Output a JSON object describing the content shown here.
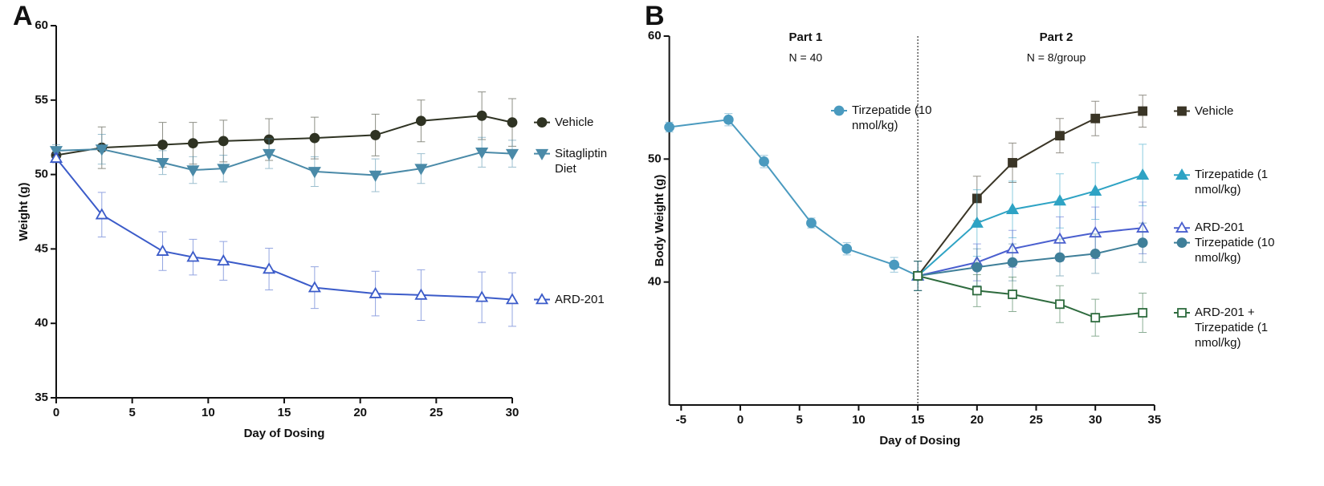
{
  "chart_data": [
    {
      "type": "line",
      "panel": "A",
      "x_label": "Day of Dosing",
      "y_label": "Weight (g)",
      "x": [
        0,
        3,
        7,
        9,
        11,
        14,
        17,
        21,
        24,
        28,
        30
      ],
      "xlim": [
        0,
        30
      ],
      "xticks": [
        0,
        5,
        10,
        15,
        20,
        25,
        30
      ],
      "ylim": [
        35,
        60
      ],
      "yticks": [
        35,
        40,
        45,
        50,
        55,
        60
      ],
      "legend": "right",
      "series": [
        {
          "name": "Vehicle",
          "color": "#2f3323",
          "marker": "circle",
          "filled": true,
          "values": [
            51.3,
            51.8,
            52.0,
            52.1,
            52.25,
            52.35,
            52.45,
            52.65,
            53.6,
            53.95,
            53.5
          ],
          "errors": [
            0.5,
            1.4,
            1.5,
            1.4,
            1.4,
            1.4,
            1.4,
            1.4,
            1.4,
            1.6,
            1.6
          ]
        },
        {
          "name": "Sitagliptin Diet",
          "color": "#4a8aa8",
          "marker": "triangle-down",
          "filled": true,
          "values": [
            51.6,
            51.7,
            50.8,
            50.3,
            50.4,
            51.4,
            50.2,
            49.95,
            50.4,
            51.5,
            51.4
          ],
          "errors": [
            0.4,
            1.0,
            0.8,
            0.9,
            0.9,
            1.0,
            1.0,
            1.1,
            1.0,
            1.0,
            0.9
          ]
        },
        {
          "name": "ARD-201",
          "color": "#3b5bc9",
          "marker": "triangle",
          "filled": false,
          "values": [
            51.1,
            47.3,
            44.85,
            44.45,
            44.2,
            43.65,
            42.4,
            42.0,
            41.9,
            41.75,
            41.6
          ],
          "errors": [
            0.3,
            1.5,
            1.3,
            1.2,
            1.3,
            1.4,
            1.4,
            1.5,
            1.7,
            1.7,
            1.8
          ]
        }
      ]
    },
    {
      "type": "line",
      "panel": "B",
      "x_label": "Day of Dosing",
      "y_label": "Body Weight (g)",
      "xlim": [
        -6,
        35
      ],
      "xticks": [
        -5,
        0,
        5,
        10,
        15,
        20,
        25,
        30,
        35
      ],
      "ylim": [
        30,
        60
      ],
      "yticks": [
        40,
        50,
        60
      ],
      "legend": "right",
      "divider_x": 15,
      "parts": [
        {
          "title": "Part 1",
          "subtitle": "N = 40"
        },
        {
          "title": "Part 2",
          "subtitle": "N = 8/group"
        }
      ],
      "series": [
        {
          "name": "Tirzepatide (10 nmol/kg)",
          "color": "#4a9abf",
          "marker": "circle",
          "filled": true,
          "x": [
            -6,
            -1,
            2,
            6,
            9,
            13,
            15
          ],
          "values": [
            52.6,
            53.2,
            49.8,
            44.8,
            42.7,
            41.4,
            40.5
          ],
          "errors": [
            0.4,
            0.5,
            0.5,
            0.4,
            0.5,
            0.6,
            1.2
          ]
        },
        {
          "name": "Vehicle",
          "color": "#3a3526",
          "marker": "square",
          "filled": true,
          "x": [
            15,
            20,
            23,
            27,
            30,
            34
          ],
          "values": [
            40.5,
            46.8,
            49.7,
            51.9,
            53.3,
            53.9
          ],
          "errors": [
            1.2,
            1.8,
            1.6,
            1.4,
            1.4,
            1.3
          ]
        },
        {
          "name": "Tirzepatide (1 nmol/kg)",
          "color": "#2ea3c4",
          "marker": "triangle",
          "filled": true,
          "x": [
            15,
            20,
            23,
            27,
            30,
            34
          ],
          "values": [
            40.5,
            44.8,
            45.9,
            46.6,
            47.4,
            48.7
          ],
          "errors": [
            1.2,
            2.7,
            2.3,
            2.2,
            2.3,
            2.5
          ]
        },
        {
          "name": "ARD-201",
          "color": "#4a5fcf",
          "marker": "triangle",
          "filled": false,
          "x": [
            15,
            20,
            23,
            27,
            30,
            34
          ],
          "values": [
            40.5,
            41.6,
            42.7,
            43.5,
            44.0,
            44.4
          ],
          "errors": [
            1.2,
            1.5,
            1.5,
            1.8,
            2.1,
            2.1
          ]
        },
        {
          "name": "Tirzepatide (10 nmol/kg)",
          "color": "#3f7f99",
          "marker": "circle",
          "filled": true,
          "x": [
            15,
            20,
            23,
            27,
            30,
            34
          ],
          "values": [
            40.5,
            41.2,
            41.6,
            42.0,
            42.3,
            43.2
          ],
          "errors": [
            1.2,
            1.5,
            1.5,
            1.5,
            1.6,
            1.6
          ]
        },
        {
          "name": "ARD-201 + Tirzepatide (1 nmol/kg)",
          "color": "#2e6b3e",
          "marker": "square",
          "filled": false,
          "x": [
            15,
            20,
            23,
            27,
            30,
            34
          ],
          "values": [
            40.5,
            39.3,
            39.0,
            38.2,
            37.1,
            37.5
          ],
          "errors": [
            1.2,
            1.3,
            1.4,
            1.5,
            1.5,
            1.6
          ]
        }
      ]
    }
  ]
}
